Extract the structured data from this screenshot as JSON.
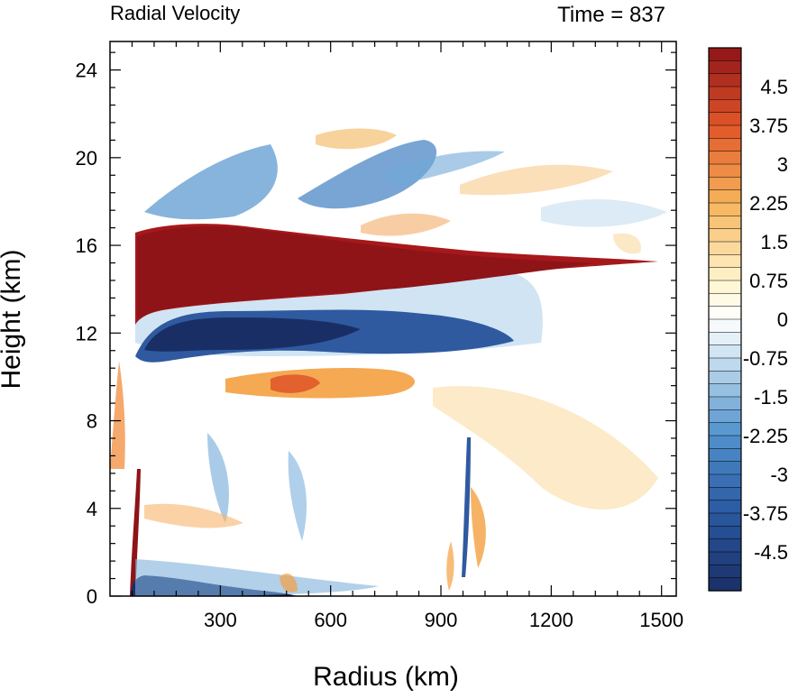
{
  "chart_data": {
    "type": "heatmap",
    "title_left": "Radial Velocity",
    "title_right": "Time = 837",
    "xlabel": "Radius (km)",
    "ylabel": "Height (km)",
    "xlim": [
      0,
      1540
    ],
    "ylim": [
      0,
      25.3
    ],
    "xticks": [
      300,
      600,
      900,
      1200,
      1500
    ],
    "yticks": [
      0,
      4,
      8,
      12,
      16,
      20,
      24
    ],
    "colorbar": {
      "min": -5.25,
      "max": 5.25,
      "step": 0.25,
      "labels": [
        "4.5",
        "3.75",
        "3",
        "2.25",
        "1.5",
        "0.75",
        "0",
        "-0.75",
        "-1.5",
        "-2.25",
        "-3",
        "-3.75",
        "-4.5"
      ],
      "label_values": [
        4.5,
        3.75,
        3,
        2.25,
        1.5,
        0.75,
        0,
        -0.75,
        -1.5,
        -2.25,
        -3,
        -3.75,
        -4.5
      ],
      "colors": {
        "dark_red": "#8e1418",
        "red": "#d7301f",
        "orange": "#f4a040",
        "light_yellow": "#fff3c8",
        "white": "#ffffff",
        "light_blue": "#cfe4f2",
        "blue": "#3f7fc0",
        "dark_blue": "#1a2e66"
      }
    },
    "features": [
      {
        "x0": 60,
        "x1": 560,
        "x2": 1090,
        "y_center_start": 15.0,
        "y_center_end": 15.4,
        "value": 5.5
      },
      {
        "x0": 70,
        "x1": 520,
        "x2": 900,
        "y_center_start": 11.5,
        "y_center_end": 12.5,
        "value": -5.5
      },
      {
        "x0": 60,
        "x1": 300,
        "y_center_start": 0.3,
        "value": -5.0
      },
      {
        "x0": 320,
        "x1": 760,
        "y_center": 9.8,
        "value": 2.5
      }
    ]
  }
}
